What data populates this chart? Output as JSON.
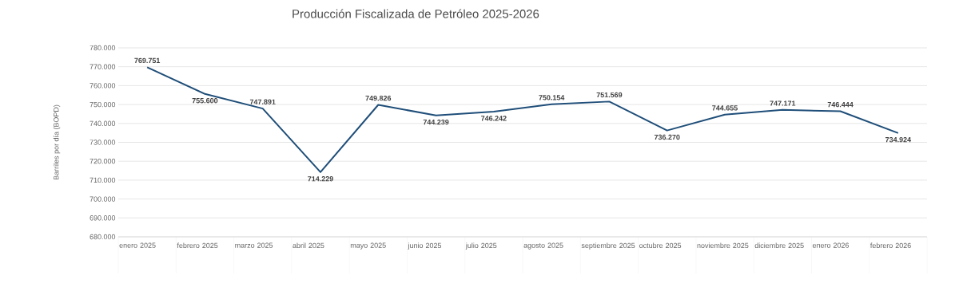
{
  "chart_data": {
    "type": "line",
    "title": "Producción Fiscalizada de Petróleo 2025-2026",
    "ylabel": "Barriles por día (BOPD)",
    "categories": [
      "enero 2025",
      "febrero 2025",
      "marzo 2025",
      "abril 2025",
      "mayo 2025",
      "junio 2025",
      "julio 2025",
      "agosto 2025",
      "septiembre 2025",
      "octubre 2025",
      "noviembre 2025",
      "diciembre 2025",
      "enero 2026",
      "febrero 2026"
    ],
    "series": [
      {
        "color": "#1f4e79",
        "values": [
          769751,
          755600,
          747891,
          714229,
          749826,
          744239,
          746242,
          750154,
          751569,
          736270,
          744655,
          747171,
          746444,
          734924
        ],
        "value_labels": [
          "769.751",
          "755.600",
          "747.891",
          "714.229",
          "749.826",
          "744.239",
          "746.242",
          "750.154",
          "751.569",
          "736.270",
          "744.655",
          "747.171",
          "746.444",
          "734.924"
        ]
      }
    ],
    "ylim": [
      680000,
      780000
    ],
    "yticks": [
      {
        "value": 680000,
        "label": "680.000"
      },
      {
        "value": 690000,
        "label": "690.000"
      },
      {
        "value": 700000,
        "label": "700.000"
      },
      {
        "value": 710000,
        "label": "710.000"
      },
      {
        "value": 720000,
        "label": "720.000"
      },
      {
        "value": 730000,
        "label": "730.000"
      },
      {
        "value": 740000,
        "label": "740.000"
      },
      {
        "value": 750000,
        "label": "750.000"
      },
      {
        "value": 760000,
        "label": "760.000"
      },
      {
        "value": 770000,
        "label": "770.000"
      },
      {
        "value": 780000,
        "label": "780.000"
      }
    ],
    "grid": "y",
    "marker": "none",
    "line_style": "solid"
  }
}
